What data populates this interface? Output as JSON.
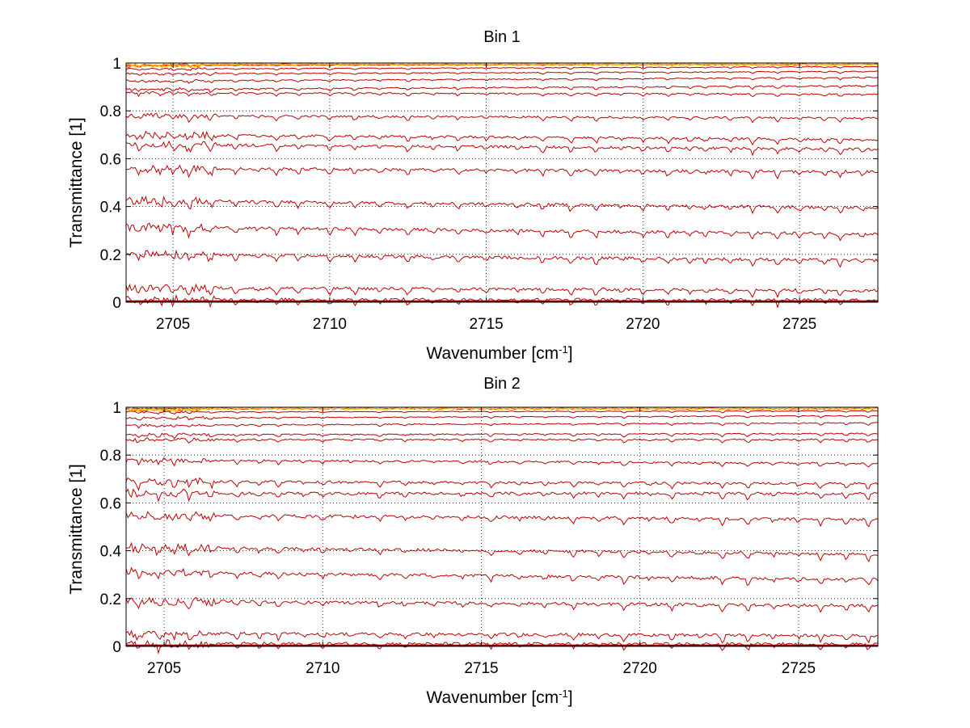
{
  "chart_data": [
    {
      "type": "line",
      "title": "Bin 1",
      "xlabel": "Wavenumber [cm",
      "xlabel_sup": "-1",
      "xlabel_end": "]",
      "ylabel": "Transmittance [1]",
      "xlim": [
        2703.5,
        2727.5
      ],
      "ylim": [
        0,
        1
      ],
      "x_ticks": [
        "2705",
        "2710",
        "2715",
        "2720",
        "2725"
      ],
      "y_ticks": [
        "0",
        "0.2",
        "0.4",
        "0.6",
        "0.8",
        "1"
      ],
      "grid": true,
      "colors": [
        "#c00000",
        "#e03000",
        "#ff8000",
        "#ffd000"
      ],
      "dip_wavenumbers": [
        2703.9,
        2704.6,
        2705.0,
        2705.5,
        2706.2,
        2707.0,
        2707.7,
        2708.3,
        2709.0,
        2710.0,
        2710.8,
        2711.6,
        2712.5,
        2713.3,
        2714.1,
        2715.0,
        2716.0,
        2716.8,
        2717.7,
        2718.5,
        2719.3,
        2720.0,
        2720.8,
        2721.5,
        2722.0,
        2722.8,
        2723.5,
        2724.3,
        2725.0,
        2725.8,
        2726.3,
        2727.0
      ],
      "series": [
        {
          "start": 0.99,
          "end": 0.995
        },
        {
          "start": 0.975,
          "end": 0.985
        },
        {
          "start": 0.955,
          "end": 0.965
        },
        {
          "start": 0.925,
          "end": 0.94
        },
        {
          "start": 0.89,
          "end": 0.905
        },
        {
          "start": 0.875,
          "end": 0.87
        },
        {
          "start": 0.78,
          "end": 0.77
        },
        {
          "start": 0.7,
          "end": 0.68
        },
        {
          "start": 0.66,
          "end": 0.64
        },
        {
          "start": 0.56,
          "end": 0.545
        },
        {
          "start": 0.425,
          "end": 0.395
        },
        {
          "start": 0.315,
          "end": 0.285
        },
        {
          "start": 0.2,
          "end": 0.175
        },
        {
          "start": 0.06,
          "end": 0.05
        },
        {
          "start": 0.012,
          "end": 0.01
        }
      ]
    },
    {
      "type": "line",
      "title": "Bin 2",
      "xlabel": "Wavenumber [cm",
      "xlabel_sup": "-1",
      "xlabel_end": "]",
      "ylabel": "Transmittance [1]",
      "xlim": [
        2703.8,
        2727.5
      ],
      "ylim": [
        0,
        1
      ],
      "x_ticks": [
        "2705",
        "2710",
        "2715",
        "2720",
        "2725"
      ],
      "y_ticks": [
        "0",
        "0.2",
        "0.4",
        "0.6",
        "0.8",
        "1"
      ],
      "grid": true,
      "colors": [
        "#c00000",
        "#e03000",
        "#ff8000",
        "#ffd000"
      ],
      "dip_wavenumbers": [
        2704.2,
        2704.8,
        2705.3,
        2705.8,
        2706.5,
        2707.3,
        2708.0,
        2708.6,
        2709.4,
        2710.0,
        2710.9,
        2711.8,
        2712.6,
        2713.5,
        2714.4,
        2715.3,
        2716.2,
        2717.0,
        2717.9,
        2718.7,
        2719.5,
        2720.3,
        2721.0,
        2721.9,
        2722.6,
        2723.4,
        2724.2,
        2725.0,
        2725.7,
        2726.5,
        2727.2
      ],
      "series": [
        {
          "start": 0.995,
          "end": 0.995
        },
        {
          "start": 0.98,
          "end": 0.985
        },
        {
          "start": 0.955,
          "end": 0.965
        },
        {
          "start": 0.925,
          "end": 0.935
        },
        {
          "start": 0.885,
          "end": 0.89
        },
        {
          "start": 0.865,
          "end": 0.865
        },
        {
          "start": 0.78,
          "end": 0.765
        },
        {
          "start": 0.69,
          "end": 0.68
        },
        {
          "start": 0.64,
          "end": 0.64
        },
        {
          "start": 0.55,
          "end": 0.53
        },
        {
          "start": 0.415,
          "end": 0.385
        },
        {
          "start": 0.31,
          "end": 0.28
        },
        {
          "start": 0.19,
          "end": 0.17
        },
        {
          "start": 0.055,
          "end": 0.045
        },
        {
          "start": 0.012,
          "end": 0.01
        }
      ]
    }
  ]
}
